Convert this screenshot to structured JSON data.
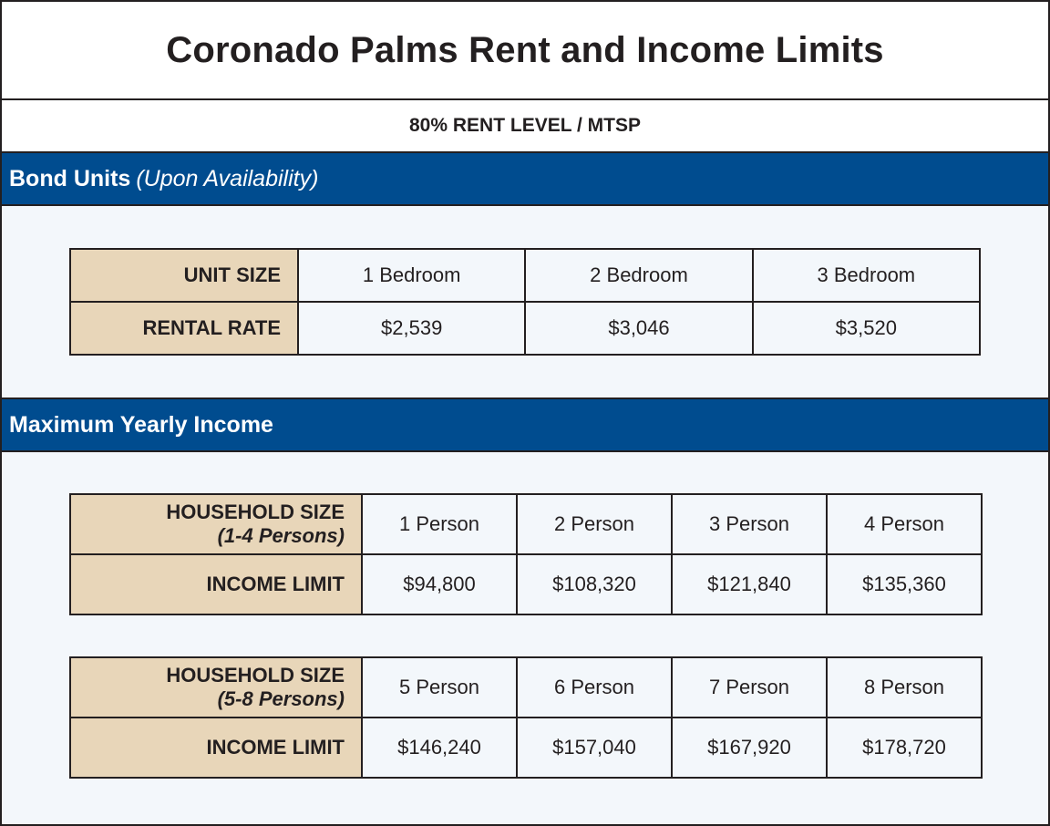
{
  "title": "Coronado Palms Rent and Income Limits",
  "subtitle": "80% RENT LEVEL / MTSP",
  "bond_section": {
    "label": "Bond Units",
    "note": "(Upon Availability)",
    "row_header_unit": "UNIT SIZE",
    "row_header_rate": "RENTAL RATE",
    "units": [
      "1 Bedroom",
      "2 Bedroom",
      "3 Bedroom"
    ],
    "rates": [
      "$2,539",
      "$3,046",
      "$3,520"
    ]
  },
  "income_section": {
    "label": "Maximum Yearly Income",
    "tables": [
      {
        "header": "HOUSEHOLD SIZE",
        "note": "(1-4 Persons)",
        "limit_header": "INCOME LIMIT",
        "sizes": [
          "1 Person",
          "2 Person",
          "3 Person",
          "4 Person"
        ],
        "limits": [
          "$94,800",
          "$108,320",
          "$121,840",
          "$135,360"
        ]
      },
      {
        "header": "HOUSEHOLD SIZE",
        "note": "(5-8 Persons)",
        "limit_header": "INCOME LIMIT",
        "sizes": [
          "5 Person",
          "6 Person",
          "7 Person",
          "8 Person"
        ],
        "limits": [
          "$146,240",
          "$157,040",
          "$167,920",
          "$178,720"
        ]
      }
    ]
  },
  "colors": {
    "section_bar": "#004c8f",
    "header_cell": "#e8d6b9",
    "body_bg": "#f3f7fb",
    "border": "#231f20"
  }
}
